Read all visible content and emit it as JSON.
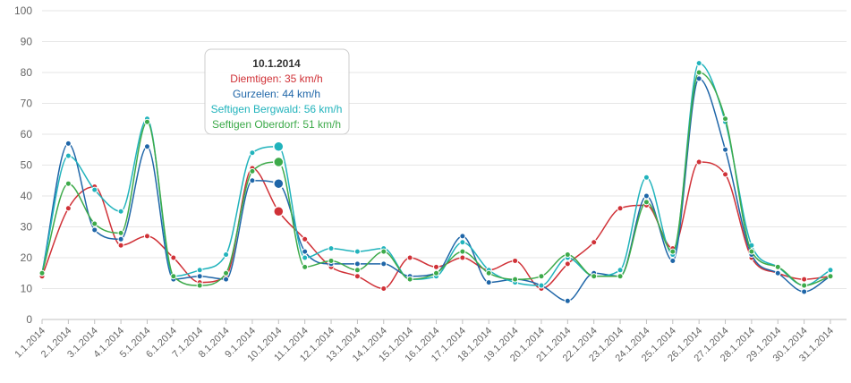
{
  "chart_data": {
    "type": "line",
    "title": "",
    "xlabel": "",
    "ylabel": "",
    "ylim": [
      0,
      100
    ],
    "yticks": [
      0,
      10,
      20,
      30,
      40,
      50,
      60,
      70,
      80,
      90,
      100
    ],
    "grid": true,
    "categories": [
      "1.1.2014",
      "2.1.2014",
      "3.1.2014",
      "4.1.2014",
      "5.1.2014",
      "6.1.2014",
      "7.1.2014",
      "8.1.2014",
      "9.1.2014",
      "10.1.2014",
      "11.1.2014",
      "12.1.2014",
      "13.1.2014",
      "14.1.2014",
      "15.1.2014",
      "16.1.2014",
      "17.1.2014",
      "18.1.2014",
      "19.1.2014",
      "20.1.2014",
      "21.1.2014",
      "22.1.2014",
      "23.1.2014",
      "24.1.2014",
      "25.1.2014",
      "26.1.2014",
      "27.1.2014",
      "28.1.2014",
      "29.1.2014",
      "30.1.2014",
      "31.1.2014"
    ],
    "series": [
      {
        "name": "Diemtigen",
        "color": "#d03137",
        "values": [
          14,
          36,
          43,
          24,
          27,
          20,
          12,
          14,
          49,
          35,
          26,
          17,
          14,
          10,
          20,
          17,
          20,
          16,
          19,
          10,
          18,
          25,
          36,
          37,
          23,
          51,
          47,
          20,
          15,
          13,
          14
        ]
      },
      {
        "name": "Gurzelen",
        "color": "#1f66a8",
        "values": [
          15,
          57,
          29,
          26,
          56,
          13,
          14,
          13,
          45,
          44,
          22,
          18,
          18,
          18,
          14,
          15,
          27,
          12,
          13,
          11,
          6,
          15,
          14,
          40,
          19,
          78,
          55,
          21,
          15,
          9,
          14
        ]
      },
      {
        "name": "Seftigen Bergwald",
        "color": "#21b3bc",
        "values": [
          15,
          53,
          42,
          35,
          65,
          14,
          16,
          21,
          54,
          56,
          20,
          23,
          22,
          23,
          13,
          14,
          25,
          16,
          12,
          11,
          20,
          14,
          16,
          46,
          21,
          83,
          64,
          24,
          17,
          11,
          16
        ]
      },
      {
        "name": "Seftigen Oberdorf",
        "color": "#3daa4a",
        "values": [
          15,
          44,
          31,
          28,
          64,
          14,
          11,
          15,
          48,
          51,
          17,
          19,
          16,
          22,
          13,
          15,
          22,
          15,
          13,
          14,
          21,
          14,
          14,
          38,
          22,
          80,
          65,
          22,
          17,
          11,
          14
        ]
      }
    ],
    "tooltip": {
      "category_index": 9,
      "title": "10.1.2014",
      "lines": [
        "Diemtigen: 35 km/h",
        "Gurzelen: 44 km/h",
        "Seftigen Bergwald: 56 km/h",
        "Seftigen Oberdorf: 51 km/h"
      ]
    }
  }
}
